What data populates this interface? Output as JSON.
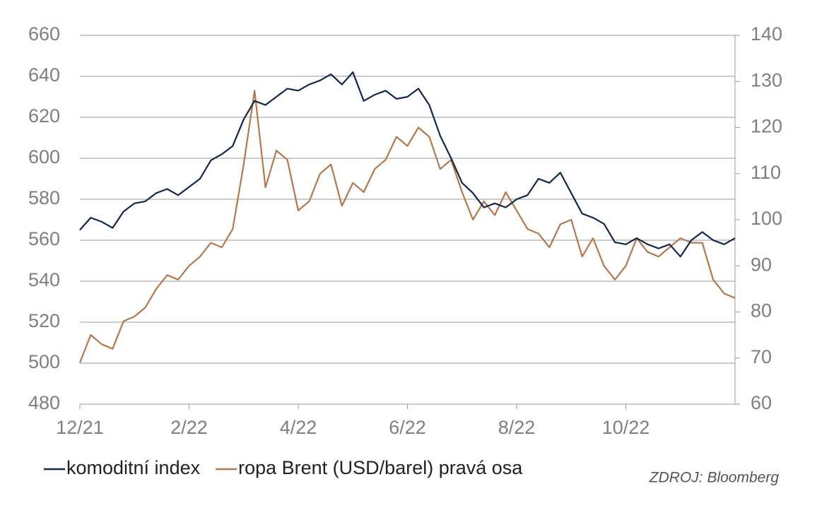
{
  "chart_data": {
    "type": "line",
    "x": [
      0,
      0.2,
      0.4,
      0.6,
      0.8,
      1,
      1.2,
      1.4,
      1.6,
      1.8,
      2,
      2.2,
      2.4,
      2.6,
      2.8,
      3,
      3.2,
      3.4,
      3.6,
      3.8,
      4,
      4.2,
      4.4,
      4.6,
      4.8,
      5,
      5.2,
      5.4,
      5.6,
      5.8,
      6,
      6.2,
      6.4,
      6.6,
      6.8,
      7,
      7.2,
      7.4,
      7.6,
      7.8,
      8,
      8.2,
      8.4,
      8.6,
      8.8,
      9,
      9.2,
      9.4,
      9.6,
      9.8,
      10,
      10.2,
      10.4,
      10.6,
      10.8,
      11,
      11.2,
      11.4,
      11.6,
      11.8,
      12
    ],
    "series": [
      {
        "name": "komoditní index",
        "color": "#10284c",
        "axis": "y",
        "values": [
          565,
          571,
          569,
          566,
          574,
          578,
          579,
          583,
          585,
          582,
          586,
          590,
          599,
          602,
          606,
          619,
          628,
          626,
          630,
          634,
          633,
          636,
          638,
          641,
          636,
          642,
          628,
          631,
          633,
          629,
          630,
          634,
          626,
          611,
          600,
          588,
          583,
          576,
          578,
          576,
          580,
          582,
          590,
          588,
          593,
          583,
          573,
          571,
          568,
          559,
          558,
          561,
          558,
          556,
          558,
          552,
          560,
          564,
          560,
          558,
          561
        ]
      },
      {
        "name": "ropa Brent (USD/barel) pravá osa",
        "color": "#b5784a",
        "axis": "y2",
        "values": [
          69,
          75,
          73,
          72,
          78,
          79,
          81,
          85,
          88,
          87,
          90,
          92,
          95,
          94,
          98,
          112,
          128,
          107,
          115,
          113,
          102,
          104,
          110,
          112,
          103,
          108,
          106,
          111,
          113,
          118,
          116,
          120,
          118,
          111,
          113,
          106,
          100,
          104,
          101,
          106,
          102,
          98,
          97,
          94,
          99,
          100,
          92,
          96,
          90,
          87,
          90,
          96,
          93,
          92,
          94,
          96,
          95,
          95,
          87,
          84,
          83
        ]
      }
    ],
    "xlim": [
      0,
      12
    ],
    "xticks": [
      {
        "value": 0,
        "label": "12/21"
      },
      {
        "value": 2,
        "label": "2/22"
      },
      {
        "value": 4,
        "label": "4/22"
      },
      {
        "value": 6,
        "label": "6/22"
      },
      {
        "value": 8,
        "label": "8/22"
      },
      {
        "value": 10,
        "label": "10/22"
      }
    ],
    "ylim": [
      480,
      660
    ],
    "yticks": [
      480,
      500,
      520,
      540,
      560,
      580,
      600,
      620,
      640,
      660
    ],
    "y2lim": [
      60,
      140
    ],
    "y2ticks": [
      60,
      70,
      80,
      90,
      100,
      110,
      120,
      130,
      140
    ],
    "grid": true,
    "source": "ZDROJ: Bloomberg"
  }
}
